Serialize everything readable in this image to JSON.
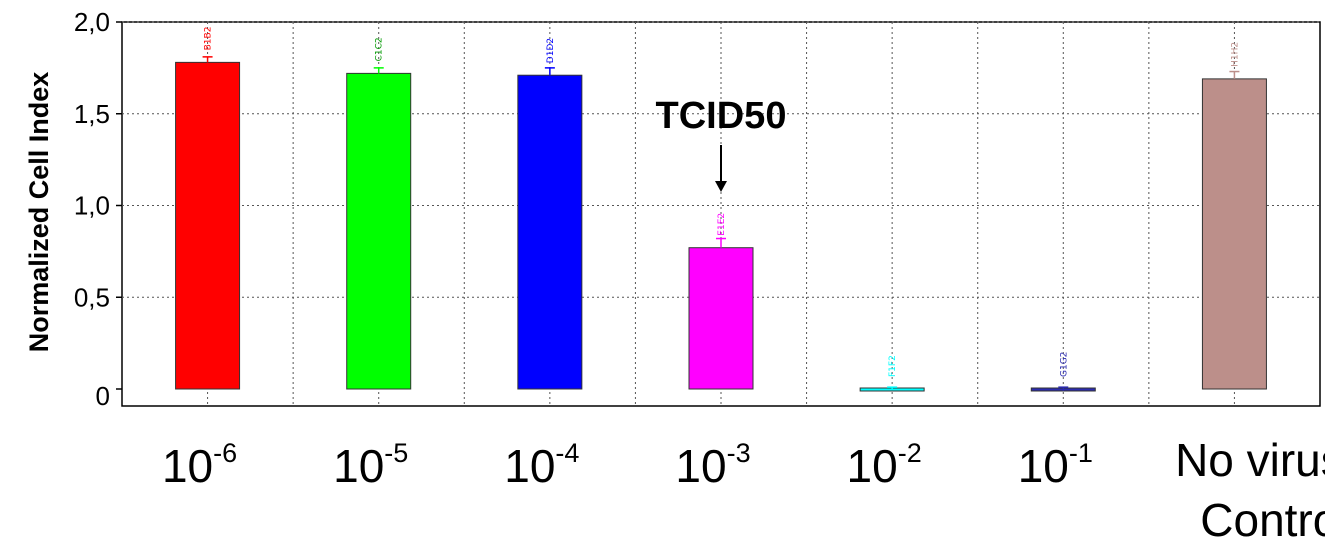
{
  "chart_data": {
    "type": "bar",
    "ylabel": "Normalized Cell Index",
    "yticks": [
      "0",
      "0,5",
      "1,0",
      "1,5",
      "2,0"
    ],
    "ylim": [
      -0.1,
      2.0
    ],
    "grid": true,
    "categories": [
      {
        "base": "10",
        "exp": "-6",
        "label": "10-6"
      },
      {
        "base": "10",
        "exp": "-5",
        "label": "10-5"
      },
      {
        "base": "10",
        "exp": "-4",
        "label": "10-4"
      },
      {
        "base": "10",
        "exp": "-3",
        "label": "10-3"
      },
      {
        "base": "10",
        "exp": "-2",
        "label": "10-2"
      },
      {
        "base": "10",
        "exp": "-1",
        "label": "10-1"
      },
      {
        "base": "",
        "exp": "",
        "label": "No virus Control",
        "lines": [
          "No virus",
          "Control"
        ]
      }
    ],
    "values": [
      1.78,
      1.72,
      1.71,
      0.77,
      0.0,
      -0.01,
      1.69
    ],
    "errors": [
      0.03,
      0.03,
      0.04,
      0.05,
      0.01,
      0.02,
      0.04
    ],
    "well_labels": [
      "B1B2",
      "C1C2",
      "D1D2",
      "E1E2",
      "F1F2",
      "G1G2",
      "H1H2"
    ],
    "colors": [
      "#ff0000",
      "#00ff00",
      "#0000ff",
      "#ff00ff",
      "#00ffff",
      "#2b2bb0",
      "#bc8f8a"
    ],
    "annotation": {
      "text": "TCID50",
      "category_index": 3
    }
  }
}
